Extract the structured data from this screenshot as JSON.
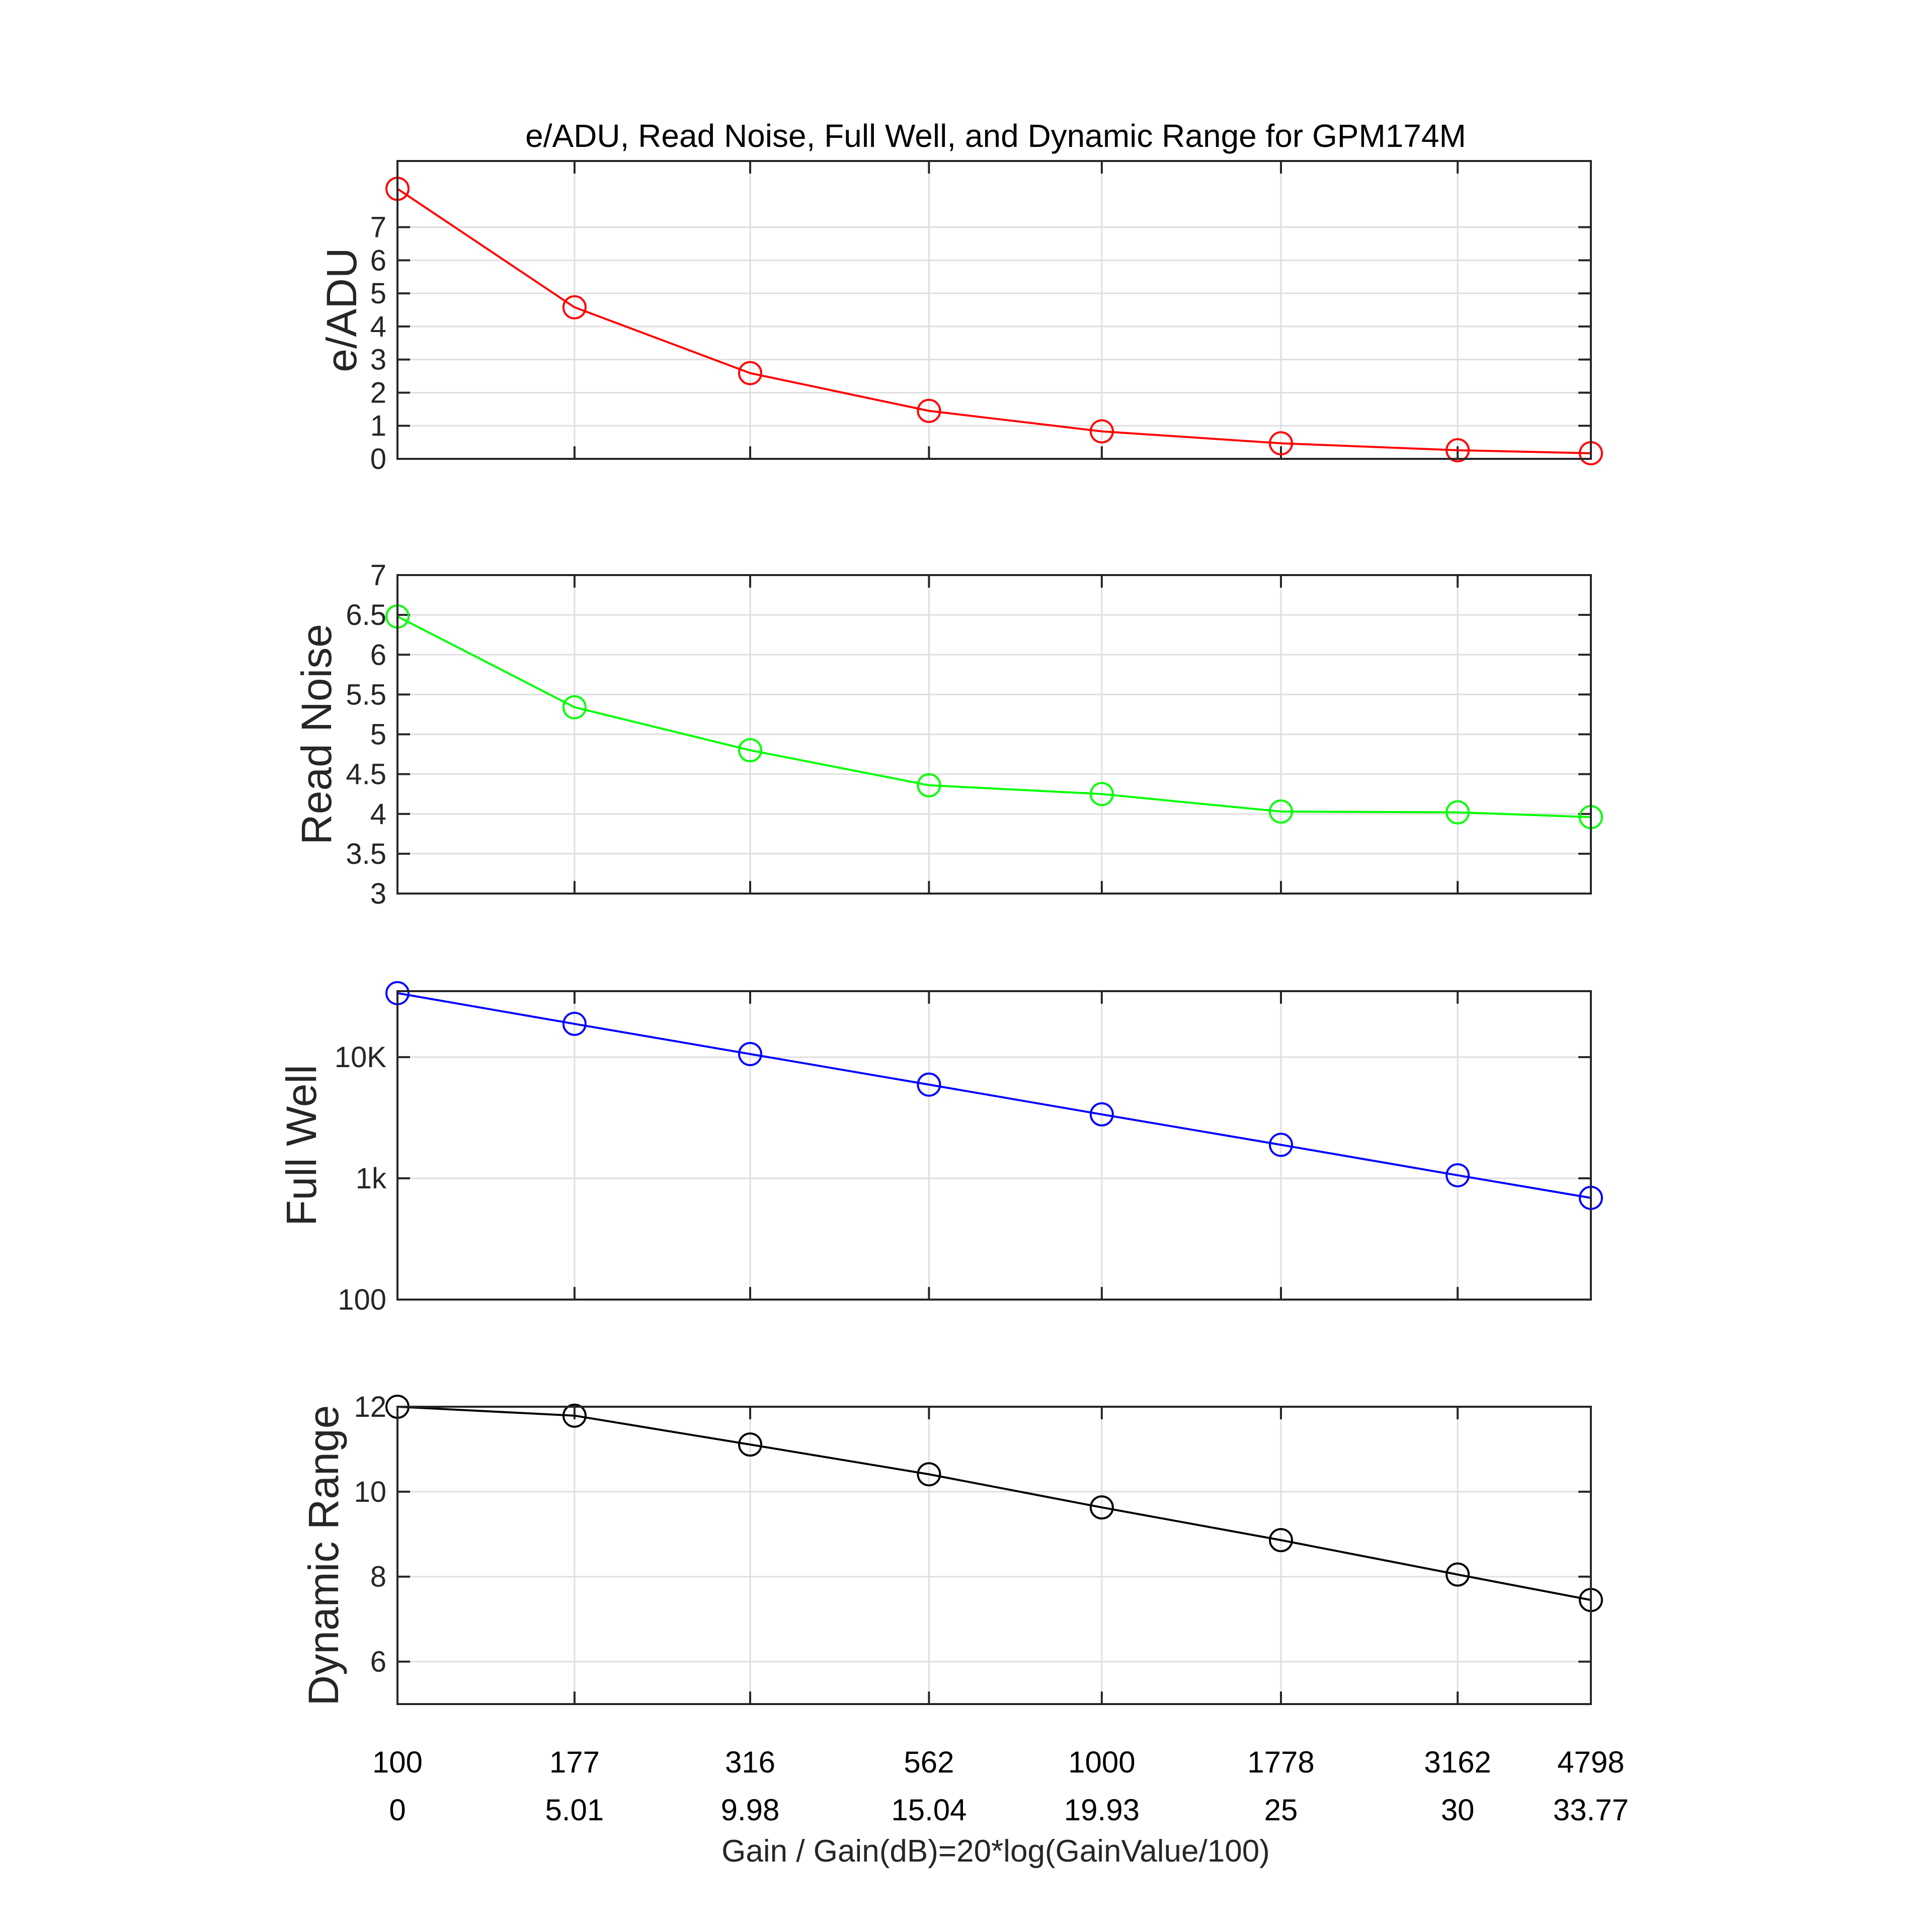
{
  "figure": {
    "title": "e/ADU, Read Noise, Full Well, and Dynamic Range for GPM174M",
    "xlabel": "Gain / Gain(dB)=20*log(GainValue/100)",
    "x_tick_labels_gain": [
      "100",
      "177",
      "316",
      "562",
      "1000",
      "1778",
      "3162",
      "4798"
    ],
    "x_tick_labels_db": [
      "0",
      "5.01",
      "9.98",
      "15.04",
      "19.93",
      "25",
      "30",
      "33.77"
    ]
  },
  "chart_data": [
    {
      "type": "line",
      "title": "e/ADU, Read Noise, Full Well, and Dynamic Range for GPM174M",
      "xlabel": "Gain / Gain(dB)=20*log(GainValue/100)",
      "ylabel": "e/ADU",
      "x": [
        0,
        5.01,
        9.98,
        15.04,
        19.93,
        25,
        30,
        33.77
      ],
      "x_gain": [
        100,
        177,
        316,
        562,
        1000,
        1778,
        3162,
        4798
      ],
      "values": [
        8.16,
        4.58,
        2.59,
        1.45,
        0.83,
        0.47,
        0.26,
        0.17
      ],
      "color": "#ff0000",
      "marker": "circle",
      "yscale": "linear",
      "ylim": [
        0,
        9
      ],
      "yticks": [
        0,
        1,
        2,
        3,
        4,
        5,
        6,
        7
      ],
      "ytick_labels": [
        "0",
        "1",
        "2",
        "3",
        "4",
        "5",
        "6",
        "7"
      ],
      "grid": true
    },
    {
      "type": "line",
      "ylabel": "Read Noise",
      "x": [
        0,
        5.01,
        9.98,
        15.04,
        19.93,
        25,
        30,
        33.77
      ],
      "x_gain": [
        100,
        177,
        316,
        562,
        1000,
        1778,
        3162,
        4798
      ],
      "values": [
        6.48,
        5.34,
        4.8,
        4.36,
        4.25,
        4.03,
        4.02,
        3.96
      ],
      "color": "#00ff00",
      "marker": "circle",
      "yscale": "linear",
      "ylim": [
        3,
        7
      ],
      "yticks": [
        3,
        3.5,
        4,
        4.5,
        5,
        5.5,
        6,
        6.5,
        7
      ],
      "ytick_labels": [
        "3",
        "3.5",
        "4",
        "4.5",
        "5",
        "5.5",
        "6",
        "6.5",
        "7"
      ],
      "grid": true
    },
    {
      "type": "line",
      "ylabel": "Full Well",
      "x": [
        0,
        5.01,
        9.98,
        15.04,
        19.93,
        25,
        30,
        33.77
      ],
      "x_gain": [
        100,
        177,
        316,
        562,
        1000,
        1778,
        3162,
        4798
      ],
      "values": [
        33700,
        18800,
        10600,
        5930,
        3370,
        1890,
        1060,
        690
      ],
      "color": "#0000ff",
      "marker": "circle",
      "yscale": "log",
      "ylim": [
        100,
        35000
      ],
      "yticks": [
        100,
        1000,
        10000
      ],
      "ytick_labels": [
        "100",
        "1k",
        "10K"
      ],
      "grid": true
    },
    {
      "type": "line",
      "ylabel": "Dynamic Range",
      "x": [
        0,
        5.01,
        9.98,
        15.04,
        19.93,
        25,
        30,
        33.77
      ],
      "x_gain": [
        100,
        177,
        316,
        562,
        1000,
        1778,
        3162,
        4798
      ],
      "values": [
        12.0,
        11.79,
        11.11,
        10.41,
        9.63,
        8.86,
        8.05,
        7.45
      ],
      "color": "#000000",
      "marker": "circle",
      "yscale": "linear",
      "ylim": [
        5,
        12
      ],
      "yticks": [
        6,
        8,
        10,
        12
      ],
      "ytick_labels": [
        "6",
        "8",
        "10",
        "12"
      ],
      "grid": true
    }
  ]
}
